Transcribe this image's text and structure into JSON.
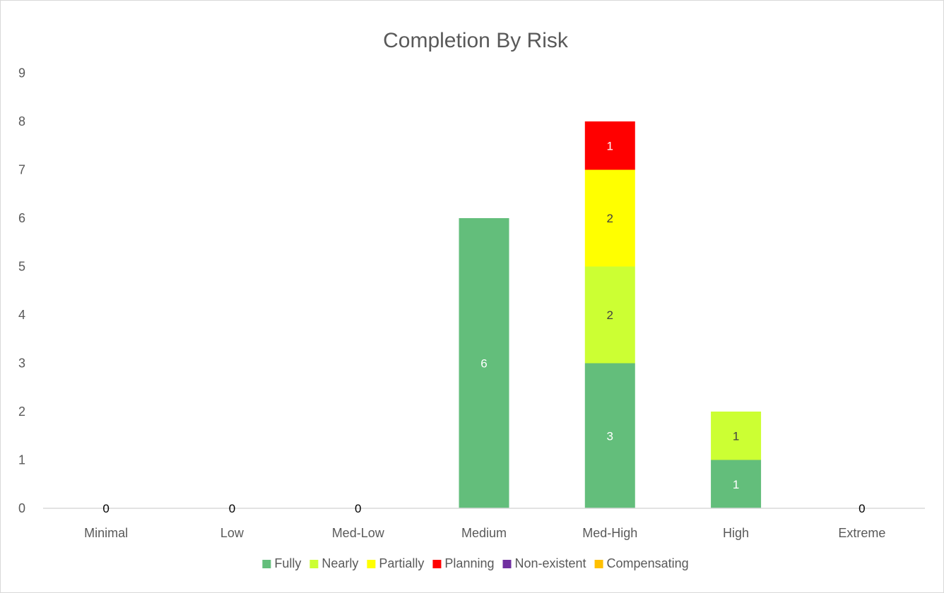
{
  "chart_data": {
    "type": "bar",
    "stacked": true,
    "title": "Completion By Risk",
    "xlabel": "",
    "ylabel": "",
    "ylim": [
      0,
      9
    ],
    "y_ticks": [
      0,
      1,
      2,
      3,
      4,
      5,
      6,
      7,
      8,
      9
    ],
    "categories": [
      "Minimal",
      "Low",
      "Med-Low",
      "Medium",
      "Med-High",
      "High",
      "Extreme"
    ],
    "series": [
      {
        "name": "Fully",
        "color": "#63be7b",
        "label_color": "#ffffff",
        "values": [
          0,
          0,
          0,
          6,
          3,
          1,
          0
        ]
      },
      {
        "name": "Nearly",
        "color": "#ccff33",
        "label_color": "#404040",
        "values": [
          0,
          0,
          0,
          0,
          2,
          1,
          0
        ]
      },
      {
        "name": "Partially",
        "color": "#ffff00",
        "label_color": "#404040",
        "values": [
          0,
          0,
          0,
          0,
          2,
          0,
          0
        ]
      },
      {
        "name": "Planning",
        "color": "#ff0000",
        "label_color": "#ffffff",
        "values": [
          0,
          0,
          0,
          0,
          1,
          0,
          0
        ]
      },
      {
        "name": "Non-existent",
        "color": "#7030a0",
        "label_color": "#ffffff",
        "values": [
          0,
          0,
          0,
          0,
          0,
          0,
          0
        ]
      },
      {
        "name": "Compensating",
        "color": "#ffc000",
        "label_color": "#404040",
        "values": [
          0,
          0,
          0,
          0,
          0,
          0,
          0
        ]
      }
    ],
    "zero_label_text": "0",
    "grid": false,
    "legend": "bottom"
  }
}
